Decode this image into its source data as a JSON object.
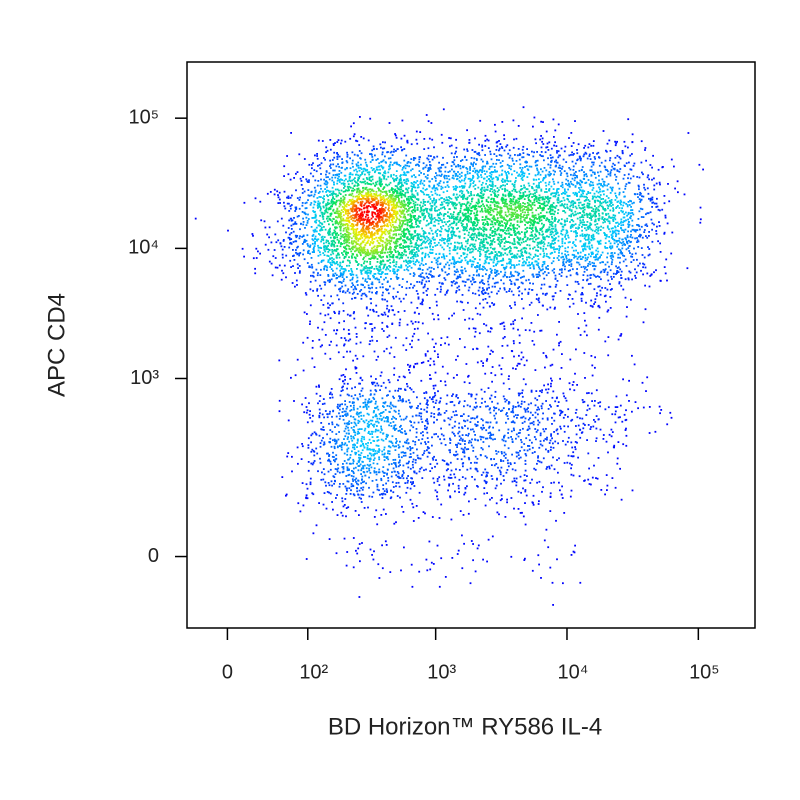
{
  "chart_data": {
    "type": "density",
    "xlabel": "BD Horizon™ RY586 IL-4",
    "ylabel": "APC CD4",
    "xscale": "biexponential",
    "yscale": "biexponential",
    "xlim": [
      -40,
      270000
    ],
    "ylim": [
      -140,
      270000
    ],
    "xticks": [
      0,
      {
        "value": 100,
        "label": "10²"
      },
      {
        "value": 1000,
        "label": "10³"
      },
      {
        "value": 10000,
        "label": "10⁴"
      },
      {
        "value": 100000,
        "label": "10⁵"
      }
    ],
    "yticks": [
      0,
      {
        "value": 1000,
        "label": "10³"
      },
      {
        "value": 10000,
        "label": "10⁴"
      },
      {
        "value": 100000,
        "label": "10⁵"
      }
    ],
    "x": [
      60,
      60,
      150,
      150,
      150,
      300,
      300,
      300,
      600,
      600,
      600,
      1500,
      1500,
      1500,
      3000,
      3000,
      3000,
      6000,
      6000,
      6000,
      15000,
      15000,
      15000,
      30000,
      30000,
      30000,
      150,
      300,
      600,
      1500,
      3000,
      6000,
      15000,
      150,
      300,
      600,
      1500,
      3000,
      6000,
      15000,
      30000,
      150,
      300,
      600,
      1500,
      3000,
      6000,
      15000,
      30000,
      150,
      300,
      600,
      1500,
      3000,
      6000,
      15000,
      150,
      300,
      600,
      1500,
      3000,
      6000,
      15000,
      300,
      1500,
      6000
    ],
    "y": [
      10000,
      20000,
      10000,
      20000,
      40000,
      10000,
      20000,
      40000,
      10000,
      20000,
      40000,
      10000,
      20000,
      40000,
      10000,
      20000,
      40000,
      10000,
      20000,
      40000,
      10000,
      20000,
      40000,
      10000,
      20000,
      40000,
      2000,
      2000,
      2000,
      2000,
      2000,
      2000,
      2000,
      5000,
      5000,
      5000,
      5000,
      5000,
      5000,
      5000,
      5000,
      600,
      600,
      600,
      600,
      600,
      600,
      600,
      600,
      300,
      300,
      300,
      300,
      300,
      300,
      300,
      150,
      150,
      150,
      150,
      150,
      150,
      150,
      0,
      0,
      0
    ],
    "counts": [
      60,
      40,
      250,
      300,
      100,
      450,
      700,
      200,
      300,
      350,
      180,
      250,
      330,
      160,
      260,
      380,
      170,
      270,
      400,
      170,
      230,
      330,
      150,
      120,
      180,
      80,
      40,
      50,
      40,
      35,
      35,
      30,
      25,
      80,
      90,
      70,
      70,
      70,
      70,
      60,
      30,
      70,
      200,
      110,
      90,
      100,
      90,
      60,
      25,
      100,
      220,
      110,
      100,
      110,
      90,
      50,
      80,
      120,
      60,
      50,
      50,
      40,
      25,
      30,
      30,
      20
    ],
    "colormap": [
      "#0000ff",
      "#00c8ff",
      "#00e060",
      "#f0f000",
      "#ff0000"
    ]
  }
}
